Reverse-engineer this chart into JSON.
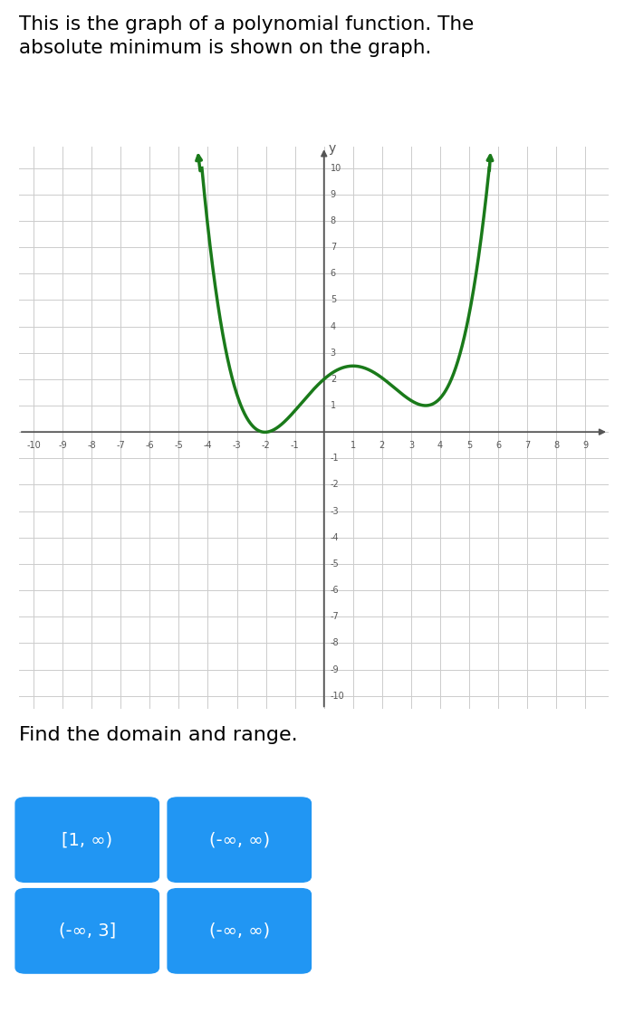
{
  "title": "This is the graph of a polynomial function. The\nabsolute minimum is shown on the graph.",
  "question": "Find the domain and range.",
  "curve_color": "#1a7a1a",
  "curve_linewidth": 2.5,
  "grid_color": "#cccccc",
  "axis_color": "#555555",
  "bg_color": "#ffffff",
  "xlim": [
    -10.5,
    9.8
  ],
  "ylim": [
    -10.5,
    10.8
  ],
  "buttons": [
    {
      "label": "[1, ∞)",
      "row": 0,
      "col": 0
    },
    {
      "label": "(-∞, ∞)",
      "row": 0,
      "col": 1
    },
    {
      "label": "(-∞, 3]",
      "row": 1,
      "col": 0
    },
    {
      "label": "(-∞, ∞)",
      "row": 1,
      "col": 1
    }
  ],
  "button_color": "#2196f3",
  "button_text_color": "#ffffff",
  "button_fontsize": 14,
  "poly_a": 0.12,
  "poly_b": -0.9,
  "poly_c": 1.35,
  "poly_d": 1.23,
  "poly_e": 2.0
}
